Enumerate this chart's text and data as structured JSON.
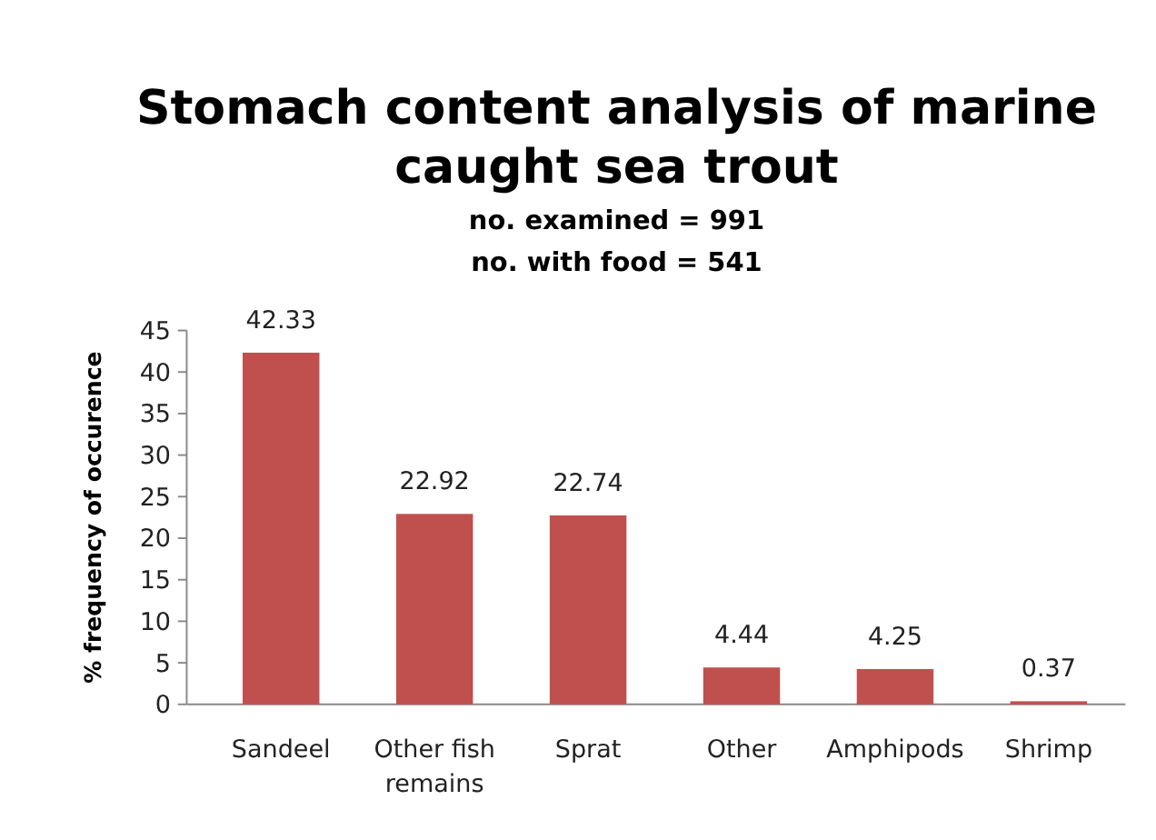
{
  "chart_data": {
    "type": "bar",
    "title": "Stomach content analysis of marine caught sea trout",
    "subtitle": "no. examined = 991\nno. with food = 541",
    "ylabel": "% frequency of occurence",
    "categories": [
      "Sandeel",
      "Other fish remains",
      "Sprat",
      "Other",
      "Amphipods",
      "Shrimp"
    ],
    "values": [
      42.33,
      22.92,
      22.74,
      4.44,
      4.25,
      0.37
    ],
    "color": "#c0504d",
    "data_labels": true,
    "ylim": [
      0,
      45
    ],
    "yticks": [
      0,
      5,
      10,
      15,
      20,
      25,
      30,
      35,
      40,
      45
    ],
    "grid": false
  }
}
